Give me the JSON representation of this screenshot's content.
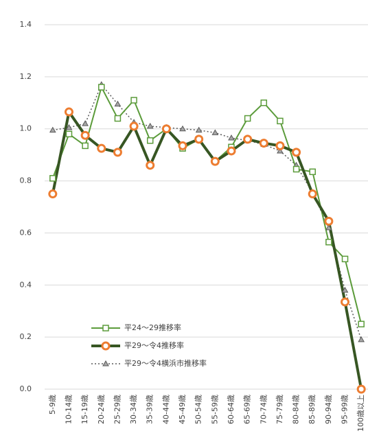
{
  "chart_data": {
    "type": "line",
    "categories": [
      "5-9歳",
      "10-14歳",
      "15-19歳",
      "20-24歳",
      "25-29歳",
      "30-34歳",
      "35-39歳",
      "40-44歳",
      "45-49歳",
      "50-54歳",
      "55-59歳",
      "60-64歳",
      "65-69歳",
      "70-74歳",
      "75-79歳",
      "80-84歳",
      "85-89歳",
      "90-94歳",
      "95-99歳",
      "100歳以上"
    ],
    "series": [
      {
        "name": "平24～29推移率",
        "color": "#5b9b3a",
        "marker": "square",
        "values": [
          0.81,
          0.98,
          0.935,
          1.16,
          1.04,
          1.11,
          0.955,
          1.0,
          0.925,
          0.96,
          0.875,
          0.93,
          1.04,
          1.1,
          1.03,
          0.845,
          0.835,
          0.565,
          0.5,
          0.25
        ]
      },
      {
        "name": "平29～令4推移率",
        "color": "#375623",
        "marker": "circle",
        "marker_color": "#ed7d31",
        "values": [
          0.75,
          1.065,
          0.975,
          0.925,
          0.91,
          1.01,
          0.86,
          1.0,
          0.935,
          0.96,
          0.875,
          0.915,
          0.96,
          0.945,
          0.935,
          0.91,
          0.75,
          0.645,
          0.335,
          0.0
        ]
      },
      {
        "name": "平29～令4横浜市推移率",
        "color": "#595959",
        "marker": "triangle",
        "values": [
          0.995,
          1.005,
          1.02,
          1.17,
          1.095,
          1.025,
          1.01,
          1.005,
          1.0,
          0.995,
          0.985,
          0.965,
          0.955,
          0.94,
          0.915,
          0.86,
          0.755,
          0.62,
          0.38,
          0.19
        ]
      }
    ],
    "ylim": [
      0,
      1.4
    ],
    "yticks": [
      {
        "value": 0,
        "label": "0.0"
      },
      0.2,
      0.4,
      0.6,
      0.8,
      {
        "value": 1,
        "label": "1.0"
      },
      1.2,
      1.4
    ],
    "grid": true
  }
}
